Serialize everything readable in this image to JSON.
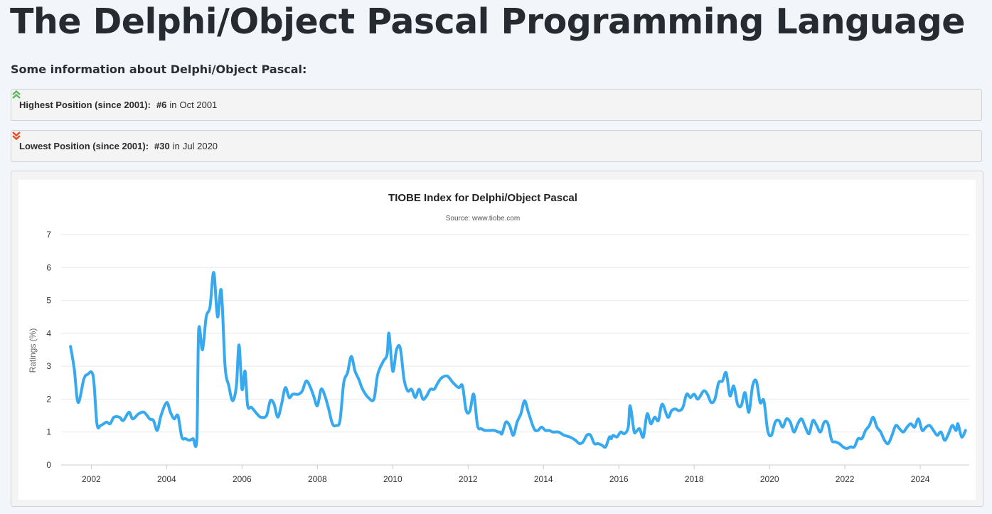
{
  "page": {
    "title": "The Delphi/Object Pascal Programming Language",
    "subheading": "Some information about Delphi/Object Pascal:"
  },
  "highest": {
    "label": "Highest Position (since 2001):",
    "value": "#6",
    "connector": "in",
    "date": "Oct 2001",
    "icon": "double-chevron-up-icon",
    "color": "#5cb85c"
  },
  "lowest": {
    "label": "Lowest Position (since 2001):",
    "value": "#30",
    "connector": "in",
    "date": "Jul 2020",
    "icon": "double-chevron-down-icon",
    "color": "#e8491d"
  },
  "chart_data": {
    "type": "line",
    "title": "TIOBE Index for Delphi/Object Pascal",
    "subtitle": "Source: www.tiobe.com",
    "ylabel": "Ratings (%)",
    "xlabel": "",
    "ylim": [
      0,
      7
    ],
    "yticks": [
      "0",
      "1",
      "2",
      "3",
      "4",
      "5",
      "6",
      "7"
    ],
    "xlim": [
      2001.2,
      2025.3
    ],
    "xticks": [
      "2002",
      "2004",
      "2006",
      "2008",
      "2010",
      "2012",
      "2014",
      "2016",
      "2018",
      "2020",
      "2022",
      "2024"
    ],
    "grid": true,
    "legend": "none",
    "series": [
      {
        "color": "#36a9ef",
        "points": [
          [
            2001.45,
            3.6
          ],
          [
            2001.55,
            2.9
          ],
          [
            2001.65,
            1.9
          ],
          [
            2001.8,
            2.6
          ],
          [
            2001.9,
            2.75
          ],
          [
            2002.05,
            2.7
          ],
          [
            2002.15,
            1.25
          ],
          [
            2002.25,
            1.2
          ],
          [
            2002.4,
            1.3
          ],
          [
            2002.5,
            1.25
          ],
          [
            2002.6,
            1.45
          ],
          [
            2002.75,
            1.45
          ],
          [
            2002.85,
            1.35
          ],
          [
            2003.0,
            1.6
          ],
          [
            2003.1,
            1.4
          ],
          [
            2003.25,
            1.55
          ],
          [
            2003.4,
            1.6
          ],
          [
            2003.55,
            1.4
          ],
          [
            2003.65,
            1.35
          ],
          [
            2003.75,
            1.05
          ],
          [
            2003.85,
            1.5
          ],
          [
            2004.0,
            1.9
          ],
          [
            2004.1,
            1.6
          ],
          [
            2004.2,
            1.4
          ],
          [
            2004.3,
            1.5
          ],
          [
            2004.4,
            0.85
          ],
          [
            2004.5,
            0.8
          ],
          [
            2004.6,
            0.75
          ],
          [
            2004.7,
            0.8
          ],
          [
            2004.8,
            0.8
          ],
          [
            2004.85,
            4.1
          ],
          [
            2004.95,
            3.5
          ],
          [
            2005.05,
            4.5
          ],
          [
            2005.15,
            4.8
          ],
          [
            2005.25,
            5.85
          ],
          [
            2005.35,
            4.5
          ],
          [
            2005.45,
            5.3
          ],
          [
            2005.55,
            3.0
          ],
          [
            2005.65,
            2.4
          ],
          [
            2005.75,
            1.95
          ],
          [
            2005.85,
            2.4
          ],
          [
            2005.92,
            3.65
          ],
          [
            2006.0,
            2.3
          ],
          [
            2006.08,
            2.85
          ],
          [
            2006.15,
            1.8
          ],
          [
            2006.25,
            1.75
          ],
          [
            2006.4,
            1.55
          ],
          [
            2006.5,
            1.45
          ],
          [
            2006.65,
            1.5
          ],
          [
            2006.75,
            1.95
          ],
          [
            2006.85,
            1.85
          ],
          [
            2006.95,
            1.45
          ],
          [
            2007.05,
            1.85
          ],
          [
            2007.15,
            2.35
          ],
          [
            2007.25,
            2.05
          ],
          [
            2007.35,
            2.15
          ],
          [
            2007.5,
            2.15
          ],
          [
            2007.6,
            2.25
          ],
          [
            2007.7,
            2.55
          ],
          [
            2007.8,
            2.4
          ],
          [
            2007.9,
            2.1
          ],
          [
            2008.0,
            1.8
          ],
          [
            2008.1,
            2.3
          ],
          [
            2008.2,
            2.1
          ],
          [
            2008.3,
            1.7
          ],
          [
            2008.4,
            1.25
          ],
          [
            2008.5,
            1.2
          ],
          [
            2008.6,
            1.35
          ],
          [
            2008.7,
            2.5
          ],
          [
            2008.8,
            2.8
          ],
          [
            2008.9,
            3.3
          ],
          [
            2009.0,
            2.85
          ],
          [
            2009.1,
            2.6
          ],
          [
            2009.2,
            2.3
          ],
          [
            2009.35,
            2.05
          ],
          [
            2009.5,
            2.0
          ],
          [
            2009.6,
            2.75
          ],
          [
            2009.75,
            3.15
          ],
          [
            2009.85,
            3.35
          ],
          [
            2009.9,
            4.0
          ],
          [
            2010.0,
            2.85
          ],
          [
            2010.1,
            3.5
          ],
          [
            2010.2,
            3.55
          ],
          [
            2010.3,
            2.6
          ],
          [
            2010.4,
            2.25
          ],
          [
            2010.5,
            2.3
          ],
          [
            2010.6,
            2.05
          ],
          [
            2010.7,
            2.3
          ],
          [
            2010.8,
            2.0
          ],
          [
            2010.9,
            2.1
          ],
          [
            2011.0,
            2.3
          ],
          [
            2011.1,
            2.3
          ],
          [
            2011.2,
            2.5
          ],
          [
            2011.3,
            2.65
          ],
          [
            2011.45,
            2.7
          ],
          [
            2011.6,
            2.5
          ],
          [
            2011.75,
            2.35
          ],
          [
            2011.85,
            2.4
          ],
          [
            2011.95,
            1.65
          ],
          [
            2012.05,
            1.65
          ],
          [
            2012.15,
            2.15
          ],
          [
            2012.25,
            1.2
          ],
          [
            2012.35,
            1.1
          ],
          [
            2012.45,
            1.05
          ],
          [
            2012.6,
            1.05
          ],
          [
            2012.7,
            1.05
          ],
          [
            2012.8,
            1.0
          ],
          [
            2012.85,
            1.0
          ],
          [
            2012.9,
            0.95
          ],
          [
            2013.0,
            1.3
          ],
          [
            2013.1,
            1.2
          ],
          [
            2013.2,
            0.9
          ],
          [
            2013.3,
            1.3
          ],
          [
            2013.4,
            1.55
          ],
          [
            2013.5,
            1.95
          ],
          [
            2013.6,
            1.6
          ],
          [
            2013.75,
            1.1
          ],
          [
            2013.85,
            1.05
          ],
          [
            2013.95,
            1.15
          ],
          [
            2014.05,
            1.05
          ],
          [
            2014.15,
            1.05
          ],
          [
            2014.25,
            1.0
          ],
          [
            2014.4,
            1.0
          ],
          [
            2014.55,
            0.9
          ],
          [
            2014.7,
            0.85
          ],
          [
            2014.85,
            0.75
          ],
          [
            2014.95,
            0.65
          ],
          [
            2015.05,
            0.7
          ],
          [
            2015.15,
            0.9
          ],
          [
            2015.25,
            0.9
          ],
          [
            2015.35,
            0.65
          ],
          [
            2015.45,
            0.65
          ],
          [
            2015.55,
            0.6
          ],
          [
            2015.65,
            0.55
          ],
          [
            2015.75,
            0.85
          ],
          [
            2015.8,
            0.8
          ],
          [
            2015.85,
            0.9
          ],
          [
            2015.95,
            0.85
          ],
          [
            2016.05,
            1.0
          ],
          [
            2016.15,
            0.95
          ],
          [
            2016.25,
            1.15
          ],
          [
            2016.3,
            1.8
          ],
          [
            2016.4,
            1.05
          ],
          [
            2016.45,
            1.0
          ],
          [
            2016.55,
            1.1
          ],
          [
            2016.65,
            0.85
          ],
          [
            2016.75,
            1.55
          ],
          [
            2016.85,
            1.25
          ],
          [
            2016.95,
            1.45
          ],
          [
            2017.05,
            1.35
          ],
          [
            2017.15,
            1.85
          ],
          [
            2017.3,
            1.45
          ],
          [
            2017.4,
            1.65
          ],
          [
            2017.5,
            1.7
          ],
          [
            2017.6,
            1.65
          ],
          [
            2017.7,
            1.75
          ],
          [
            2017.8,
            2.15
          ],
          [
            2017.9,
            2.05
          ],
          [
            2018.0,
            2.15
          ],
          [
            2018.1,
            2.0
          ],
          [
            2018.25,
            2.25
          ],
          [
            2018.35,
            2.15
          ],
          [
            2018.45,
            1.9
          ],
          [
            2018.55,
            2.0
          ],
          [
            2018.65,
            2.5
          ],
          [
            2018.75,
            2.55
          ],
          [
            2018.85,
            2.8
          ],
          [
            2018.95,
            2.1
          ],
          [
            2019.05,
            2.4
          ],
          [
            2019.15,
            1.85
          ],
          [
            2019.25,
            1.8
          ],
          [
            2019.35,
            2.2
          ],
          [
            2019.45,
            1.6
          ],
          [
            2019.55,
            2.4
          ],
          [
            2019.65,
            2.55
          ],
          [
            2019.75,
            1.9
          ],
          [
            2019.85,
            1.95
          ],
          [
            2019.95,
            1.05
          ],
          [
            2020.05,
            0.9
          ],
          [
            2020.15,
            1.3
          ],
          [
            2020.25,
            1.35
          ],
          [
            2020.35,
            1.15
          ],
          [
            2020.45,
            1.4
          ],
          [
            2020.55,
            1.3
          ],
          [
            2020.65,
            1.0
          ],
          [
            2020.75,
            1.25
          ],
          [
            2020.85,
            1.4
          ],
          [
            2020.95,
            1.15
          ],
          [
            2021.05,
            0.95
          ],
          [
            2021.15,
            1.35
          ],
          [
            2021.25,
            1.2
          ],
          [
            2021.35,
            1.0
          ],
          [
            2021.45,
            1.3
          ],
          [
            2021.55,
            1.25
          ],
          [
            2021.65,
            0.75
          ],
          [
            2021.75,
            0.7
          ],
          [
            2021.85,
            0.65
          ],
          [
            2021.95,
            0.55
          ],
          [
            2022.05,
            0.5
          ],
          [
            2022.15,
            0.55
          ],
          [
            2022.25,
            0.55
          ],
          [
            2022.35,
            0.8
          ],
          [
            2022.45,
            0.8
          ],
          [
            2022.55,
            1.05
          ],
          [
            2022.65,
            1.2
          ],
          [
            2022.75,
            1.45
          ],
          [
            2022.85,
            1.15
          ],
          [
            2022.95,
            1.0
          ],
          [
            2023.05,
            0.75
          ],
          [
            2023.15,
            0.65
          ],
          [
            2023.25,
            0.9
          ],
          [
            2023.35,
            1.2
          ],
          [
            2023.45,
            1.1
          ],
          [
            2023.55,
            1.0
          ],
          [
            2023.65,
            1.15
          ],
          [
            2023.75,
            1.25
          ],
          [
            2023.85,
            1.15
          ],
          [
            2023.95,
            1.4
          ],
          [
            2024.05,
            1.05
          ],
          [
            2024.15,
            1.15
          ],
          [
            2024.25,
            1.2
          ],
          [
            2024.35,
            1.05
          ],
          [
            2024.45,
            0.9
          ],
          [
            2024.55,
            1.0
          ],
          [
            2024.65,
            0.75
          ],
          [
            2024.75,
            0.95
          ],
          [
            2024.85,
            1.2
          ],
          [
            2024.95,
            1.05
          ],
          [
            2025.0,
            1.25
          ],
          [
            2025.1,
            0.85
          ],
          [
            2025.2,
            1.05
          ]
        ]
      }
    ]
  }
}
